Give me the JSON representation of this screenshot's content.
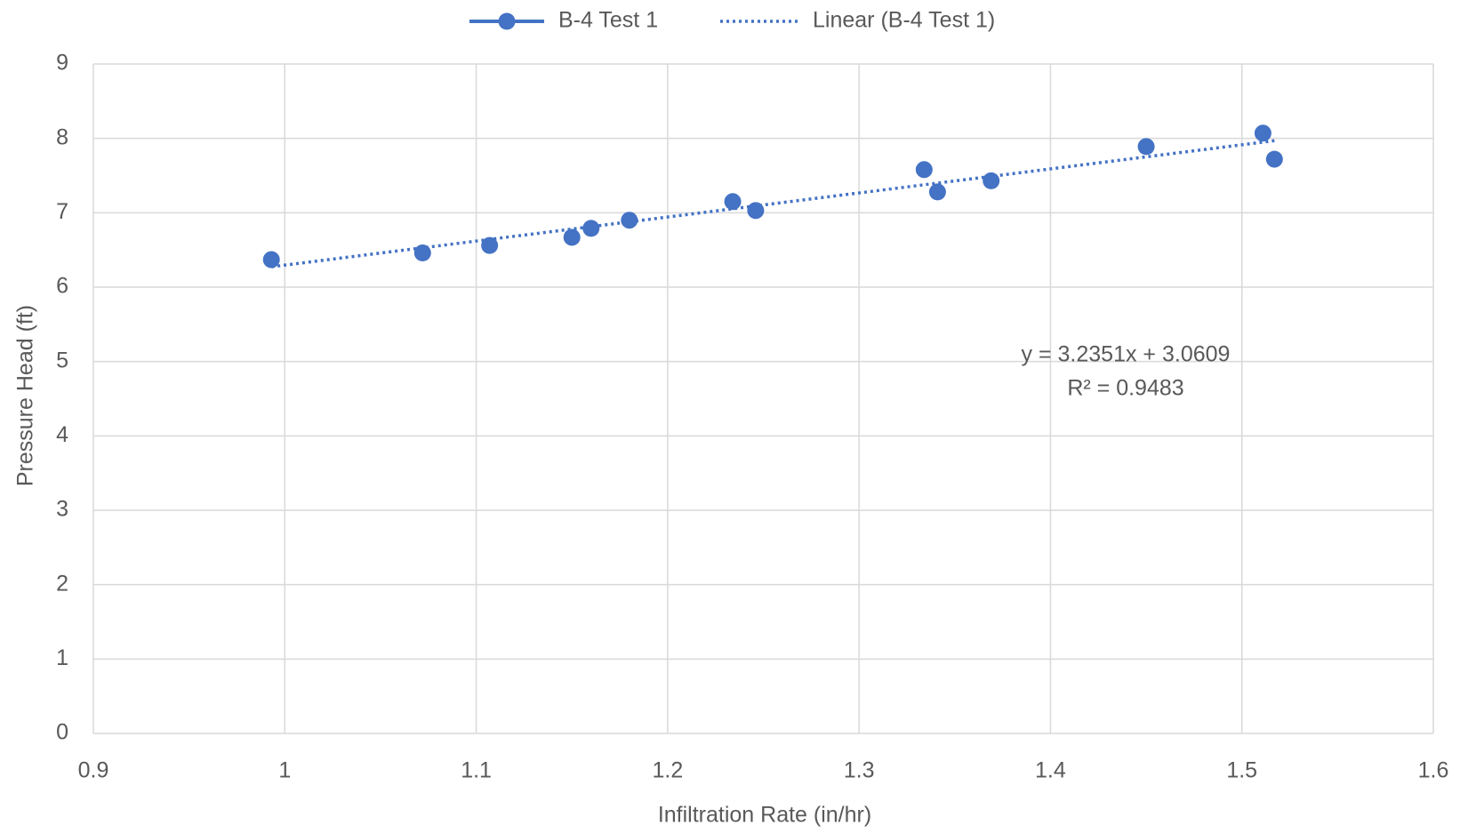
{
  "chart_data": {
    "type": "scatter",
    "xlabel": "Infiltration Rate (in/hr)",
    "ylabel": "Pressure Head (ft)",
    "series": [
      {
        "name": "B-4 Test 1",
        "color": "#4472c4",
        "x": [
          0.993,
          1.072,
          1.107,
          1.15,
          1.16,
          1.18,
          1.234,
          1.246,
          1.334,
          1.341,
          1.369,
          1.45,
          1.511,
          1.517
        ],
        "values": [
          6.37,
          6.46,
          6.56,
          6.67,
          6.79,
          6.9,
          7.15,
          7.03,
          7.58,
          7.28,
          7.43,
          7.89,
          8.07,
          7.72
        ]
      }
    ],
    "trendline": {
      "name": "Linear (B-4 Test 1)",
      "slope": 3.2351,
      "intercept": 3.0609,
      "equation": "y = 3.2351x + 3.0609",
      "r2": "R² = 0.9483"
    },
    "xlim": [
      0.9,
      1.6
    ],
    "xticks": [
      0.9,
      1,
      1.1,
      1.2,
      1.3,
      1.4,
      1.5,
      1.6
    ],
    "ylim": [
      0,
      9
    ],
    "yticks": [
      0,
      1,
      2,
      3,
      4,
      5,
      6,
      7,
      8,
      9
    ],
    "grid": true,
    "legend": "top"
  }
}
